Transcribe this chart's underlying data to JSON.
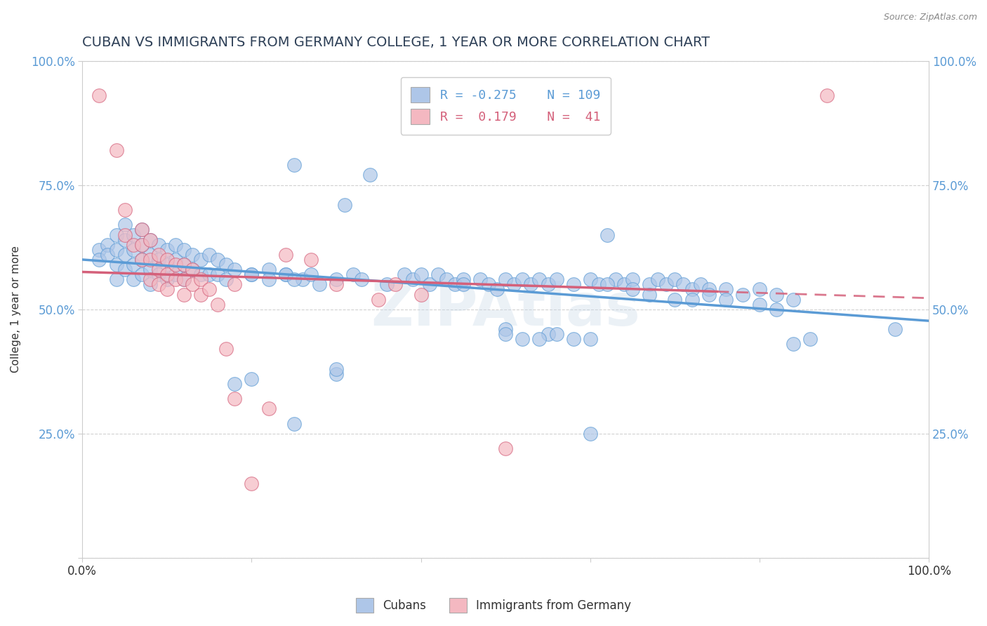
{
  "title": "CUBAN VS IMMIGRANTS FROM GERMANY COLLEGE, 1 YEAR OR MORE CORRELATION CHART",
  "source_text": "Source: ZipAtlas.com",
  "ylabel": "College, 1 year or more",
  "xlim": [
    0.0,
    1.0
  ],
  "ylim": [
    0.0,
    1.0
  ],
  "x_tick_positions": [
    0.0,
    0.2,
    0.4,
    0.6,
    0.8,
    1.0
  ],
  "x_tick_labels": [
    "0.0%",
    "",
    "",
    "",
    "",
    "100.0%"
  ],
  "y_tick_positions": [
    0.0,
    0.25,
    0.5,
    0.75,
    1.0
  ],
  "y_tick_labels": [
    "",
    "25.0%",
    "50.0%",
    "75.0%",
    "100.0%"
  ],
  "right_y_labels": [
    "",
    "25.0%",
    "50.0%",
    "75.0%",
    "100.0%"
  ],
  "legend_labels_bottom": [
    "Cubans",
    "Immigrants from Germany"
  ],
  "blue_color": "#aec6e8",
  "pink_color": "#f4b8c1",
  "blue_line_color": "#5b9bd5",
  "pink_line_color": "#d4607a",
  "watermark": "ZIPAtlas",
  "title_color": "#2e4057",
  "title_fontsize": 14,
  "blue_scatter": [
    [
      0.02,
      0.62
    ],
    [
      0.02,
      0.6
    ],
    [
      0.03,
      0.63
    ],
    [
      0.03,
      0.61
    ],
    [
      0.04,
      0.65
    ],
    [
      0.04,
      0.62
    ],
    [
      0.04,
      0.59
    ],
    [
      0.04,
      0.56
    ],
    [
      0.05,
      0.67
    ],
    [
      0.05,
      0.64
    ],
    [
      0.05,
      0.61
    ],
    [
      0.05,
      0.58
    ],
    [
      0.06,
      0.65
    ],
    [
      0.06,
      0.62
    ],
    [
      0.06,
      0.59
    ],
    [
      0.06,
      0.56
    ],
    [
      0.07,
      0.66
    ],
    [
      0.07,
      0.63
    ],
    [
      0.07,
      0.6
    ],
    [
      0.07,
      0.57
    ],
    [
      0.08,
      0.64
    ],
    [
      0.08,
      0.61
    ],
    [
      0.08,
      0.58
    ],
    [
      0.08,
      0.55
    ],
    [
      0.09,
      0.63
    ],
    [
      0.09,
      0.6
    ],
    [
      0.09,
      0.57
    ],
    [
      0.1,
      0.62
    ],
    [
      0.1,
      0.59
    ],
    [
      0.1,
      0.56
    ],
    [
      0.11,
      0.63
    ],
    [
      0.11,
      0.6
    ],
    [
      0.11,
      0.57
    ],
    [
      0.12,
      0.62
    ],
    [
      0.12,
      0.59
    ],
    [
      0.12,
      0.56
    ],
    [
      0.13,
      0.61
    ],
    [
      0.13,
      0.58
    ],
    [
      0.14,
      0.6
    ],
    [
      0.14,
      0.57
    ],
    [
      0.15,
      0.61
    ],
    [
      0.15,
      0.57
    ],
    [
      0.16,
      0.6
    ],
    [
      0.16,
      0.57
    ],
    [
      0.17,
      0.59
    ],
    [
      0.17,
      0.56
    ],
    [
      0.18,
      0.58
    ],
    [
      0.2,
      0.57
    ],
    [
      0.22,
      0.58
    ],
    [
      0.24,
      0.57
    ],
    [
      0.25,
      0.79
    ],
    [
      0.26,
      0.56
    ],
    [
      0.27,
      0.57
    ],
    [
      0.28,
      0.55
    ],
    [
      0.3,
      0.56
    ],
    [
      0.31,
      0.71
    ],
    [
      0.32,
      0.57
    ],
    [
      0.33,
      0.56
    ],
    [
      0.34,
      0.77
    ],
    [
      0.36,
      0.55
    ],
    [
      0.38,
      0.57
    ],
    [
      0.39,
      0.56
    ],
    [
      0.4,
      0.57
    ],
    [
      0.41,
      0.55
    ],
    [
      0.42,
      0.57
    ],
    [
      0.43,
      0.56
    ],
    [
      0.44,
      0.55
    ],
    [
      0.45,
      0.56
    ],
    [
      0.45,
      0.55
    ],
    [
      0.47,
      0.56
    ],
    [
      0.48,
      0.55
    ],
    [
      0.49,
      0.54
    ],
    [
      0.5,
      0.56
    ],
    [
      0.51,
      0.55
    ],
    [
      0.52,
      0.56
    ],
    [
      0.53,
      0.55
    ],
    [
      0.54,
      0.56
    ],
    [
      0.55,
      0.55
    ],
    [
      0.56,
      0.56
    ],
    [
      0.58,
      0.55
    ],
    [
      0.6,
      0.56
    ],
    [
      0.61,
      0.55
    ],
    [
      0.62,
      0.65
    ],
    [
      0.63,
      0.56
    ],
    [
      0.64,
      0.55
    ],
    [
      0.65,
      0.56
    ],
    [
      0.67,
      0.55
    ],
    [
      0.68,
      0.56
    ],
    [
      0.69,
      0.55
    ],
    [
      0.7,
      0.56
    ],
    [
      0.71,
      0.55
    ],
    [
      0.72,
      0.54
    ],
    [
      0.73,
      0.55
    ],
    [
      0.74,
      0.54
    ],
    [
      0.76,
      0.54
    ],
    [
      0.78,
      0.53
    ],
    [
      0.8,
      0.54
    ],
    [
      0.82,
      0.53
    ],
    [
      0.84,
      0.52
    ],
    [
      0.2,
      0.36
    ],
    [
      0.2,
      0.57
    ],
    [
      0.22,
      0.56
    ],
    [
      0.5,
      0.46
    ],
    [
      0.55,
      0.45
    ],
    [
      0.24,
      0.57
    ],
    [
      0.96,
      0.46
    ],
    [
      0.18,
      0.35
    ],
    [
      0.3,
      0.37
    ],
    [
      0.3,
      0.38
    ],
    [
      0.25,
      0.27
    ],
    [
      0.25,
      0.56
    ],
    [
      0.6,
      0.25
    ],
    [
      0.5,
      0.45
    ],
    [
      0.52,
      0.44
    ],
    [
      0.54,
      0.44
    ],
    [
      0.56,
      0.45
    ],
    [
      0.58,
      0.44
    ],
    [
      0.6,
      0.44
    ],
    [
      0.62,
      0.55
    ],
    [
      0.65,
      0.54
    ],
    [
      0.67,
      0.53
    ],
    [
      0.7,
      0.52
    ],
    [
      0.72,
      0.52
    ],
    [
      0.74,
      0.53
    ],
    [
      0.76,
      0.52
    ],
    [
      0.8,
      0.51
    ],
    [
      0.82,
      0.5
    ],
    [
      0.84,
      0.43
    ],
    [
      0.86,
      0.44
    ]
  ],
  "pink_scatter": [
    [
      0.02,
      0.93
    ],
    [
      0.04,
      0.82
    ],
    [
      0.05,
      0.7
    ],
    [
      0.05,
      0.65
    ],
    [
      0.06,
      0.63
    ],
    [
      0.07,
      0.66
    ],
    [
      0.07,
      0.63
    ],
    [
      0.07,
      0.6
    ],
    [
      0.08,
      0.64
    ],
    [
      0.08,
      0.6
    ],
    [
      0.08,
      0.56
    ],
    [
      0.09,
      0.61
    ],
    [
      0.09,
      0.58
    ],
    [
      0.09,
      0.55
    ],
    [
      0.1,
      0.6
    ],
    [
      0.1,
      0.57
    ],
    [
      0.1,
      0.54
    ],
    [
      0.11,
      0.59
    ],
    [
      0.11,
      0.56
    ],
    [
      0.12,
      0.59
    ],
    [
      0.12,
      0.56
    ],
    [
      0.12,
      0.53
    ],
    [
      0.13,
      0.58
    ],
    [
      0.13,
      0.55
    ],
    [
      0.14,
      0.56
    ],
    [
      0.14,
      0.53
    ],
    [
      0.15,
      0.54
    ],
    [
      0.16,
      0.51
    ],
    [
      0.17,
      0.42
    ],
    [
      0.18,
      0.55
    ],
    [
      0.18,
      0.32
    ],
    [
      0.2,
      0.15
    ],
    [
      0.22,
      0.3
    ],
    [
      0.24,
      0.61
    ],
    [
      0.27,
      0.6
    ],
    [
      0.3,
      0.55
    ],
    [
      0.35,
      0.52
    ],
    [
      0.37,
      0.55
    ],
    [
      0.4,
      0.53
    ],
    [
      0.5,
      0.22
    ],
    [
      0.88,
      0.93
    ]
  ]
}
